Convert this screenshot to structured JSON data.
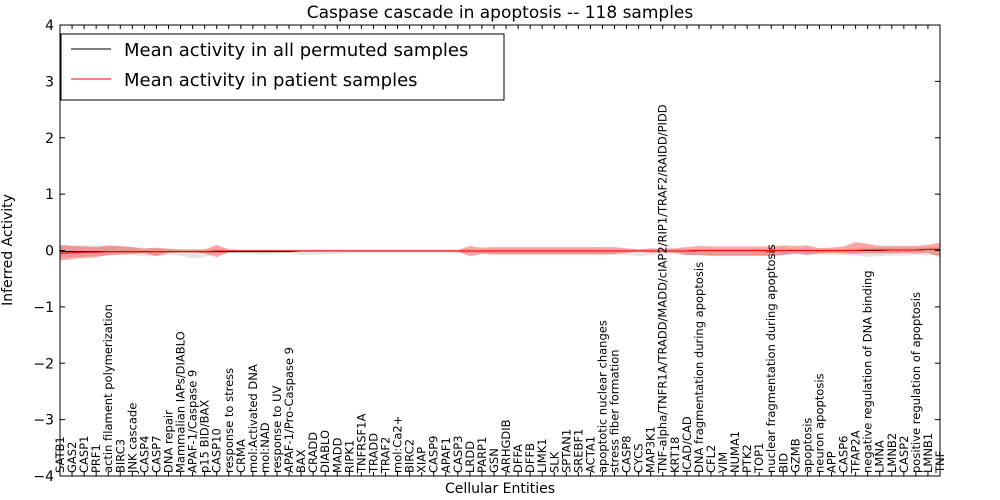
{
  "chart_data": {
    "type": "line",
    "title": "Caspase cascade in apoptosis -- 118 samples",
    "xlabel": "Cellular Entities",
    "ylabel": "Inferred Activity",
    "ylim": [
      -4,
      4
    ],
    "yticks": [
      4,
      3,
      2,
      1,
      0,
      -1,
      -2,
      -3,
      -4
    ],
    "ytick_labels": [
      "4",
      "3",
      "2",
      "1",
      "0",
      "−1",
      "−2",
      "−3",
      "−4"
    ],
    "legend_position": "top-left",
    "categories": [
      "SATB1",
      "GAS2",
      "CASP1",
      "PRF1",
      "actin filament polymerization",
      "BIRC3",
      "JNK cascade",
      "CASP4",
      "CASP7",
      "DNA repair",
      "Mammalian IAPs/DIABLO",
      "APAF-1/Caspase 9",
      "p15 BID/BAX",
      "CASP10",
      "response to stress",
      "CRMA",
      "mol:Activated DNA",
      "mol:NAD",
      "response to UV",
      "APAF-1/Pro-Caspase 9",
      "BAX",
      "CRADD",
      "DIABLO",
      "MADD",
      "RIPK1",
      "TNFRSF1A",
      "TRADD",
      "TRAF2",
      "mol:Ca2+",
      "BIRC2",
      "XIAP",
      "CASP9",
      "APAF1",
      "CASP3",
      "LRDD",
      "PARP1",
      "GSN",
      "ARHGDIB",
      "DFFA",
      "DFFB",
      "LIMK1",
      "SLK",
      "SPTAN1",
      "SREBF1",
      "ACTA1",
      "apoptotic nuclear changes",
      "stress fiber formation",
      "CASP8",
      "CYCS",
      "MAP3K1",
      "TNF-alpha/TNFR1A/TRADD/MADD/cIAP2/RIP1/TRAF2/RAIDD/PIDD",
      "KRT18",
      "ICAD/CAD",
      "DNA fragmentation during apoptosis",
      "CFL2",
      "VIM",
      "NUMA1",
      "PTK2",
      "TOP1",
      "nuclear fragmentation during apoptosis",
      "BID",
      "GZMB",
      "apoptosis",
      "neuron apoptosis",
      "APP",
      "CASP6",
      "TFAP2A",
      "negative regulation of DNA binding",
      "LMNA",
      "LMNB2",
      "CASP2",
      "positive regulation of apoptosis",
      "LMNB1",
      "TNF"
    ],
    "series": [
      {
        "name": "Mean activity in all permuted samples",
        "color": "#000000",
        "values": [
          -0.02,
          -0.02,
          -0.02,
          -0.02,
          -0.02,
          -0.02,
          -0.02,
          -0.02,
          -0.02,
          -0.02,
          -0.02,
          -0.02,
          -0.02,
          -0.02,
          -0.02,
          -0.02,
          -0.02,
          -0.02,
          -0.02,
          -0.02,
          -0.01,
          -0.01,
          -0.01,
          -0.01,
          -0.01,
          -0.01,
          -0.01,
          -0.01,
          -0.01,
          -0.01,
          -0.01,
          -0.01,
          -0.01,
          -0.01,
          -0.01,
          -0.01,
          -0.01,
          -0.01,
          -0.01,
          -0.01,
          -0.01,
          -0.01,
          -0.01,
          -0.01,
          -0.01,
          -0.01,
          -0.01,
          -0.01,
          -0.01,
          -0.01,
          -0.01,
          -0.01,
          -0.01,
          0.0,
          0.0,
          0.0,
          0.0,
          0.0,
          0.0,
          0.0,
          0.0,
          0.0,
          0.0,
          0.0,
          0.0,
          0.0,
          0.0,
          0.0,
          0.0,
          0.01,
          0.01,
          0.01,
          0.02,
          0.02
        ],
        "band_upper": [
          0.1,
          0.09,
          0.09,
          0.09,
          0.08,
          0.07,
          0.06,
          0.05,
          0.04,
          0.03,
          0.02,
          0.02,
          0.02,
          0.03,
          0.02,
          0.02,
          0.02,
          0.02,
          0.02,
          0.02,
          0.02,
          0.02,
          0.02,
          0.02,
          0.02,
          0.02,
          0.02,
          0.02,
          0.02,
          0.02,
          0.02,
          0.02,
          0.02,
          0.02,
          0.02,
          0.02,
          0.02,
          0.02,
          0.02,
          0.02,
          0.02,
          0.02,
          0.02,
          0.02,
          0.02,
          0.02,
          0.02,
          0.02,
          0.02,
          0.02,
          0.02,
          0.02,
          0.02,
          0.03,
          0.03,
          0.03,
          0.03,
          0.03,
          0.03,
          0.03,
          0.03,
          0.03,
          0.03,
          0.03,
          0.03,
          0.03,
          0.04,
          0.05,
          0.05,
          0.05,
          0.05,
          0.05,
          0.06,
          0.06
        ],
        "band_lower": [
          -0.12,
          -0.12,
          -0.11,
          -0.1,
          -0.09,
          -0.08,
          -0.08,
          -0.1,
          -0.1,
          -0.08,
          -0.09,
          -0.14,
          -0.12,
          -0.05,
          -0.05,
          -0.06,
          -0.06,
          -0.07,
          -0.05,
          -0.05,
          -0.08,
          -0.07,
          -0.07,
          -0.06,
          -0.05,
          -0.05,
          -0.05,
          -0.05,
          -0.05,
          -0.05,
          -0.05,
          -0.05,
          -0.05,
          -0.05,
          -0.05,
          -0.05,
          -0.06,
          -0.06,
          -0.06,
          -0.06,
          -0.06,
          -0.06,
          -0.06,
          -0.06,
          -0.06,
          -0.07,
          -0.08,
          -0.08,
          -0.1,
          -0.08,
          -0.06,
          -0.06,
          -0.08,
          -0.08,
          -0.1,
          -0.1,
          -0.1,
          -0.1,
          -0.1,
          -0.1,
          -0.08,
          -0.07,
          -0.07,
          -0.07,
          -0.08,
          -0.08,
          -0.09,
          -0.11,
          -0.1,
          -0.09,
          -0.09,
          -0.08,
          -0.08,
          -0.08
        ]
      },
      {
        "name": "Mean activity in patient samples",
        "color": "#ff0000",
        "values": [
          -0.05,
          -0.04,
          -0.03,
          -0.03,
          -0.02,
          -0.02,
          -0.02,
          -0.02,
          -0.02,
          -0.02,
          -0.02,
          -0.02,
          -0.02,
          -0.01,
          -0.01,
          -0.01,
          -0.01,
          -0.01,
          -0.01,
          -0.01,
          -0.01,
          -0.01,
          -0.01,
          -0.01,
          -0.01,
          -0.01,
          -0.01,
          -0.01,
          -0.01,
          -0.01,
          -0.01,
          -0.01,
          -0.01,
          -0.01,
          -0.01,
          -0.01,
          -0.01,
          -0.01,
          -0.01,
          -0.01,
          -0.01,
          -0.01,
          -0.01,
          -0.01,
          -0.01,
          -0.01,
          -0.01,
          -0.01,
          -0.01,
          -0.01,
          -0.01,
          -0.01,
          -0.01,
          0.0,
          0.0,
          0.0,
          0.0,
          0.0,
          0.0,
          0.0,
          0.0,
          0.0,
          0.0,
          0.0,
          0.0,
          0.0,
          0.0,
          0.01,
          0.01,
          0.01,
          0.01,
          0.01,
          0.02,
          0.02
        ],
        "band_upper": [
          0.1,
          0.08,
          0.07,
          0.06,
          0.09,
          0.08,
          0.06,
          0.03,
          0.05,
          0.03,
          0.02,
          0.02,
          0.02,
          0.1,
          0.02,
          0.01,
          0.01,
          0.01,
          0.01,
          0.01,
          0.01,
          0.01,
          0.01,
          0.01,
          0.01,
          0.01,
          0.01,
          0.01,
          0.01,
          0.01,
          0.01,
          0.01,
          0.01,
          0.01,
          0.08,
          0.05,
          0.06,
          0.06,
          0.06,
          0.06,
          0.06,
          0.06,
          0.06,
          0.06,
          0.06,
          0.06,
          0.06,
          0.04,
          0.02,
          0.04,
          0.03,
          0.04,
          0.06,
          0.08,
          0.07,
          0.07,
          0.07,
          0.07,
          0.07,
          0.07,
          0.09,
          0.08,
          0.09,
          0.04,
          0.05,
          0.07,
          0.15,
          0.12,
          0.08,
          0.08,
          0.08,
          0.08,
          0.1,
          0.14
        ],
        "band_lower": [
          -0.18,
          -0.15,
          -0.13,
          -0.12,
          -0.08,
          -0.07,
          -0.06,
          -0.05,
          -0.1,
          -0.04,
          -0.03,
          -0.03,
          -0.05,
          -0.12,
          -0.03,
          -0.02,
          -0.02,
          -0.02,
          -0.02,
          -0.02,
          -0.02,
          -0.02,
          -0.02,
          -0.02,
          -0.02,
          -0.02,
          -0.02,
          -0.02,
          -0.02,
          -0.02,
          -0.02,
          -0.02,
          -0.02,
          -0.02,
          -0.1,
          -0.06,
          -0.07,
          -0.07,
          -0.07,
          -0.07,
          -0.07,
          -0.07,
          -0.07,
          -0.07,
          -0.07,
          -0.07,
          -0.06,
          -0.04,
          -0.02,
          -0.04,
          -0.03,
          -0.04,
          -0.08,
          -0.08,
          -0.09,
          -0.09,
          -0.09,
          -0.09,
          -0.09,
          -0.09,
          -0.08,
          -0.05,
          -0.08,
          -0.05,
          -0.04,
          -0.05,
          -0.06,
          -0.05,
          -0.05,
          -0.05,
          -0.04,
          -0.05,
          -0.04,
          -0.12
        ]
      }
    ]
  }
}
